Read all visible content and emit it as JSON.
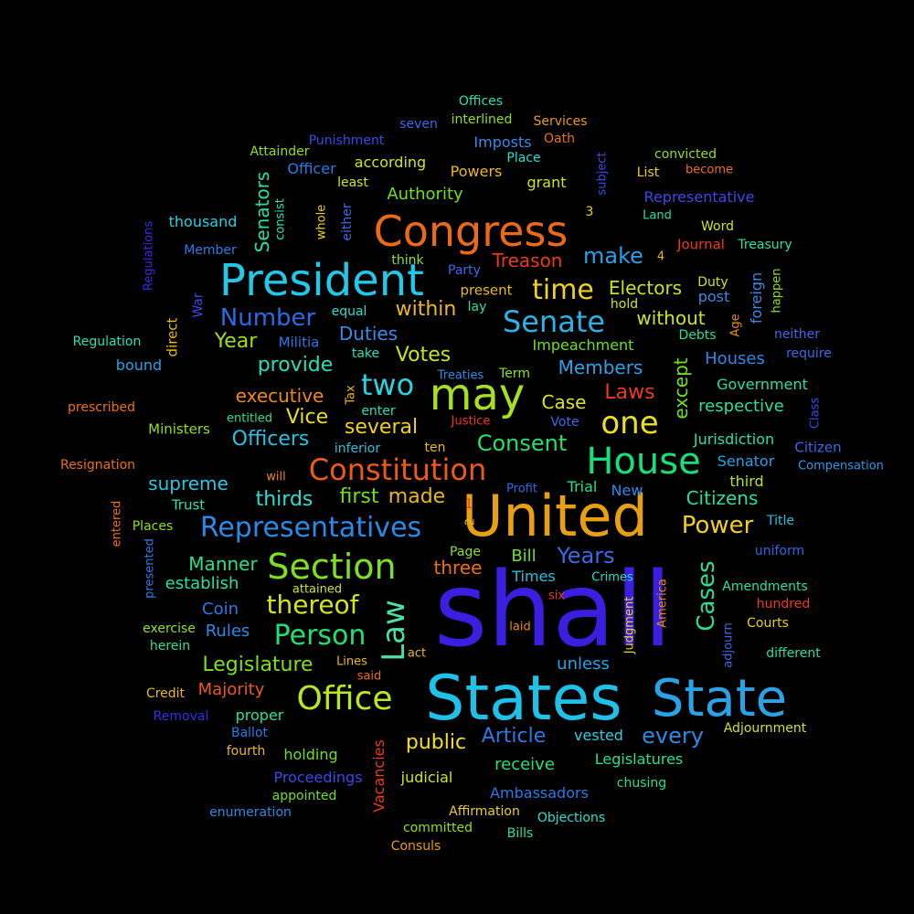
{
  "words": [
    {
      "text": "shall",
      "color": "#3a1fe0"
    },
    {
      "text": "States",
      "color": "#1ec2e8"
    },
    {
      "text": "State",
      "color": "#2aa2e6"
    },
    {
      "text": "United",
      "color": "#e8a010"
    },
    {
      "text": "President",
      "color": "#22c8e8"
    },
    {
      "text": "Congress",
      "color": "#ea6a18"
    },
    {
      "text": "may",
      "color": "#a6e01e"
    },
    {
      "text": "House",
      "color": "#14e07c"
    },
    {
      "text": "Constitution",
      "color": "#ee5a14"
    },
    {
      "text": "Representatives",
      "color": "#2a8ae8"
    },
    {
      "text": "Section",
      "color": "#7ee01e"
    },
    {
      "text": "Senate",
      "color": "#2ab2e6"
    },
    {
      "text": "Office",
      "color": "#b8e81e"
    },
    {
      "text": "Law",
      "color": "#4ee0a0"
    },
    {
      "text": "Person",
      "color": "#22e070"
    },
    {
      "text": "one",
      "color": "#ece01e"
    },
    {
      "text": "two",
      "color": "#2ad2e0"
    },
    {
      "text": "time",
      "color": "#f0d020"
    },
    {
      "text": "thereof",
      "color": "#d2e41e"
    },
    {
      "text": "Number",
      "color": "#2a6ae8"
    },
    {
      "text": "Power",
      "color": "#f0d01e"
    },
    {
      "text": "Years",
      "color": "#3a6ae8"
    },
    {
      "text": "Cases",
      "color": "#2ae090"
    },
    {
      "text": "make",
      "color": "#2aa0e8"
    },
    {
      "text": "every",
      "color": "#2a8ae6"
    },
    {
      "text": "Article",
      "color": "#2a7ae6"
    },
    {
      "text": "public",
      "color": "#f0e020"
    },
    {
      "text": "Consent",
      "color": "#26e06a"
    },
    {
      "text": "Legislature",
      "color": "#7ee01e"
    },
    {
      "text": "Officers",
      "color": "#26c2e0"
    },
    {
      "text": "Electors",
      "color": "#c8e01e"
    },
    {
      "text": "within",
      "color": "#ecb81e"
    },
    {
      "text": "Year",
      "color": "#9ee01e"
    },
    {
      "text": "provide",
      "color": "#26e0b8"
    },
    {
      "text": "Votes",
      "color": "#c8e41e"
    },
    {
      "text": "Laws",
      "color": "#ee3a14"
    },
    {
      "text": "Duties",
      "color": "#3a8ae8"
    },
    {
      "text": "several",
      "color": "#f0d020"
    },
    {
      "text": "first",
      "color": "#6ee01e"
    },
    {
      "text": "made",
      "color": "#e8b81e"
    },
    {
      "text": "thirds",
      "color": "#26e0d0"
    },
    {
      "text": "supreme",
      "color": "#26c8e0"
    },
    {
      "text": "executive",
      "color": "#ec8a14"
    },
    {
      "text": "Vice",
      "color": "#e8e020"
    },
    {
      "text": "Citizens",
      "color": "#26e0a0"
    },
    {
      "text": "Manner",
      "color": "#26e08a"
    },
    {
      "text": "three",
      "color": "#ee7014"
    },
    {
      "text": "Members",
      "color": "#2aa2e8"
    },
    {
      "text": "Treason",
      "color": "#ee3a14"
    },
    {
      "text": "Impeachment",
      "color": "#6ee01e"
    },
    {
      "text": "without",
      "color": "#d0e41e"
    },
    {
      "text": "Case",
      "color": "#e0e41e"
    },
    {
      "text": "except",
      "color": "#6ee01e"
    },
    {
      "text": "Senators",
      "color": "#26e0a0"
    },
    {
      "text": "Authority",
      "color": "#6ee01e"
    },
    {
      "text": "Jurisdiction",
      "color": "#2ae0b0"
    },
    {
      "text": "Government",
      "color": "#26e0a0"
    },
    {
      "text": "respective",
      "color": "#26e0a0"
    },
    {
      "text": "Houses",
      "color": "#2a8ae8"
    },
    {
      "text": "unless",
      "color": "#26a2e8"
    },
    {
      "text": "Majority",
      "color": "#ee5a14"
    },
    {
      "text": "Bill",
      "color": "#6ee01e"
    },
    {
      "text": "Times",
      "color": "#26c2e0"
    },
    {
      "text": "Rules",
      "color": "#2a8ae8"
    },
    {
      "text": "Coin",
      "color": "#2a7ae6"
    },
    {
      "text": "establish",
      "color": "#26e0a0"
    },
    {
      "text": "holding",
      "color": "#6ee01e"
    },
    {
      "text": "receive",
      "color": "#26e070"
    },
    {
      "text": "judicial",
      "color": "#d0e41e"
    },
    {
      "text": "Legislatures",
      "color": "#26e090"
    },
    {
      "text": "Proceedings",
      "color": "#3a4ae8"
    },
    {
      "text": "Ambassadors",
      "color": "#2a7ae6"
    },
    {
      "text": "vested",
      "color": "#26d0e0"
    },
    {
      "text": "proper",
      "color": "#26e0a0"
    },
    {
      "text": "Vacancies",
      "color": "#ee3a14"
    },
    {
      "text": "New",
      "color": "#2a8ae8"
    },
    {
      "text": "Trial",
      "color": "#26e090"
    },
    {
      "text": "third",
      "color": "#b8e41e"
    },
    {
      "text": "Senator",
      "color": "#26a2e8"
    },
    {
      "text": "Citizen",
      "color": "#3a6ae8"
    },
    {
      "text": "Compensation",
      "color": "#2a9ae8"
    },
    {
      "text": "foreign",
      "color": "#3a8ae8"
    },
    {
      "text": "Representative",
      "color": "#3a4ae8"
    },
    {
      "text": "post",
      "color": "#3a8ae8"
    },
    {
      "text": "Duty",
      "color": "#d0e41e"
    },
    {
      "text": "Debts",
      "color": "#26e090"
    },
    {
      "text": "Imposts",
      "color": "#3a8ae8"
    },
    {
      "text": "according",
      "color": "#d0e41e"
    },
    {
      "text": "Powers",
      "color": "#ecb81e"
    },
    {
      "text": "grant",
      "color": "#d0e41e"
    },
    {
      "text": "Officer",
      "color": "#2a7ae6"
    },
    {
      "text": "thousand",
      "color": "#26d0e0"
    },
    {
      "text": "Militia",
      "color": "#2a7ae6"
    },
    {
      "text": "bound",
      "color": "#26a2e8"
    },
    {
      "text": "Regulation",
      "color": "#26e0b8"
    },
    {
      "text": "direct",
      "color": "#ecb81e"
    },
    {
      "text": "War",
      "color": "#3a4ae8"
    },
    {
      "text": "Member",
      "color": "#2a7ae6"
    },
    {
      "text": "Regulations",
      "color": "#3a2ae8"
    },
    {
      "text": "prescribed",
      "color": "#ee7014"
    },
    {
      "text": "Ministers",
      "color": "#8ee01e"
    },
    {
      "text": "Resignation",
      "color": "#ee7014"
    },
    {
      "text": "Trust",
      "color": "#26e0b8"
    },
    {
      "text": "Places",
      "color": "#8ee01e"
    },
    {
      "text": "entered",
      "color": "#ee7014"
    },
    {
      "text": "presented",
      "color": "#2a7ae6"
    },
    {
      "text": "exercise",
      "color": "#8ee01e"
    },
    {
      "text": "herein",
      "color": "#26e0a0"
    },
    {
      "text": "Credit",
      "color": "#ecb81e"
    },
    {
      "text": "Removal",
      "color": "#3a2ae8"
    },
    {
      "text": "Ballot",
      "color": "#2a7ae6"
    },
    {
      "text": "fourth",
      "color": "#ecb81e"
    },
    {
      "text": "appointed",
      "color": "#6ee01e"
    },
    {
      "text": "enumeration",
      "color": "#2a8ae8"
    },
    {
      "text": "Affirmation",
      "color": "#ecd01e"
    },
    {
      "text": "committed",
      "color": "#8ee01e"
    },
    {
      "text": "Consuls",
      "color": "#ec9a14"
    },
    {
      "text": "Bills",
      "color": "#26e0a0"
    },
    {
      "text": "Objections",
      "color": "#26e0d0"
    },
    {
      "text": "chusing",
      "color": "#26e090"
    },
    {
      "text": "Adjournment",
      "color": "#d0e41e"
    },
    {
      "text": "different",
      "color": "#26e0a0"
    },
    {
      "text": "Courts",
      "color": "#ecd01e"
    },
    {
      "text": "hundred",
      "color": "#ee3a14"
    },
    {
      "text": "Amendments",
      "color": "#26e0a0"
    },
    {
      "text": "uniform",
      "color": "#2a6ae8"
    },
    {
      "text": "Title",
      "color": "#26c2e0"
    },
    {
      "text": "Class",
      "color": "#3a4ae8"
    },
    {
      "text": "require",
      "color": "#3a6ae8"
    },
    {
      "text": "neither",
      "color": "#3a6ae8"
    },
    {
      "text": "happen",
      "color": "#8ee01e"
    },
    {
      "text": "Age",
      "color": "#ec8a14"
    },
    {
      "text": "hold",
      "color": "#d0e41e"
    },
    {
      "text": "Treasury",
      "color": "#26e0a0"
    },
    {
      "text": "Journal",
      "color": "#ee3a14"
    },
    {
      "text": "Word",
      "color": "#d0e41e"
    },
    {
      "text": "Land",
      "color": "#26e0a0"
    },
    {
      "text": "List",
      "color": "#ecd01e"
    },
    {
      "text": "become",
      "color": "#ee7014"
    },
    {
      "text": "convicted",
      "color": "#8ee01e"
    },
    {
      "text": "Services",
      "color": "#ec9a14"
    },
    {
      "text": "Oath",
      "color": "#ee7014"
    },
    {
      "text": "Offices",
      "color": "#26e0b8"
    },
    {
      "text": "interlined",
      "color": "#8ee01e"
    },
    {
      "text": "seven",
      "color": "#3a6ae8"
    },
    {
      "text": "Place",
      "color": "#26e0d0"
    },
    {
      "text": "subject",
      "color": "#3a4ae8"
    },
    {
      "text": "Punishment",
      "color": "#3a4ae8"
    },
    {
      "text": "Attainder",
      "color": "#8ee01e"
    },
    {
      "text": "least",
      "color": "#d0e41e"
    },
    {
      "text": "whole",
      "color": "#ecd01e"
    },
    {
      "text": "either",
      "color": "#3a6ae8"
    },
    {
      "text": "consist",
      "color": "#26e0b8"
    },
    {
      "text": "think",
      "color": "#8ee01e"
    },
    {
      "text": "Party",
      "color": "#3a6ae8"
    },
    {
      "text": "present",
      "color": "#ecb81e"
    },
    {
      "text": "equal",
      "color": "#26e0d0"
    },
    {
      "text": "lay",
      "color": "#26e0a0"
    },
    {
      "text": "take",
      "color": "#26e0b8"
    },
    {
      "text": "Tax",
      "color": "#ecb81e"
    },
    {
      "text": "Treaties",
      "color": "#2a8ae8"
    },
    {
      "text": "Term",
      "color": "#8ee01e"
    },
    {
      "text": "enter",
      "color": "#26e0b8"
    },
    {
      "text": "Justice",
      "color": "#ee3a14"
    },
    {
      "text": "Vote",
      "color": "#3a6ae8"
    },
    {
      "text": "entitled",
      "color": "#26e090"
    },
    {
      "text": "inferior",
      "color": "#26c2e0"
    },
    {
      "text": "ten",
      "color": "#ecb81e"
    },
    {
      "text": "will",
      "color": "#ec8a14"
    },
    {
      "text": "Profit",
      "color": "#2a6ae8"
    },
    {
      "text": "Page",
      "color": "#8ee01e"
    },
    {
      "text": "Crimes",
      "color": "#26e0d0"
    },
    {
      "text": "six",
      "color": "#ee3a14"
    },
    {
      "text": "Judgment",
      "color": "#ecd01e"
    },
    {
      "text": "America",
      "color": "#ec8a14"
    },
    {
      "text": "adjourn",
      "color": "#3a6ae8"
    },
    {
      "text": "laid",
      "color": "#ec8a14"
    },
    {
      "text": "attained",
      "color": "#d0e41e"
    },
    {
      "text": "Lines",
      "color": "#ecb81e"
    },
    {
      "text": "said",
      "color": "#ee7014"
    },
    {
      "text": "act",
      "color": "#ecb81e"
    },
    {
      "text": "1",
      "color": "#ee3a14"
    },
    {
      "text": "2",
      "color": "#ecb81e"
    },
    {
      "text": "3",
      "color": "#ecd01e"
    },
    {
      "text": "4",
      "color": "#ecb81e"
    }
  ]
}
